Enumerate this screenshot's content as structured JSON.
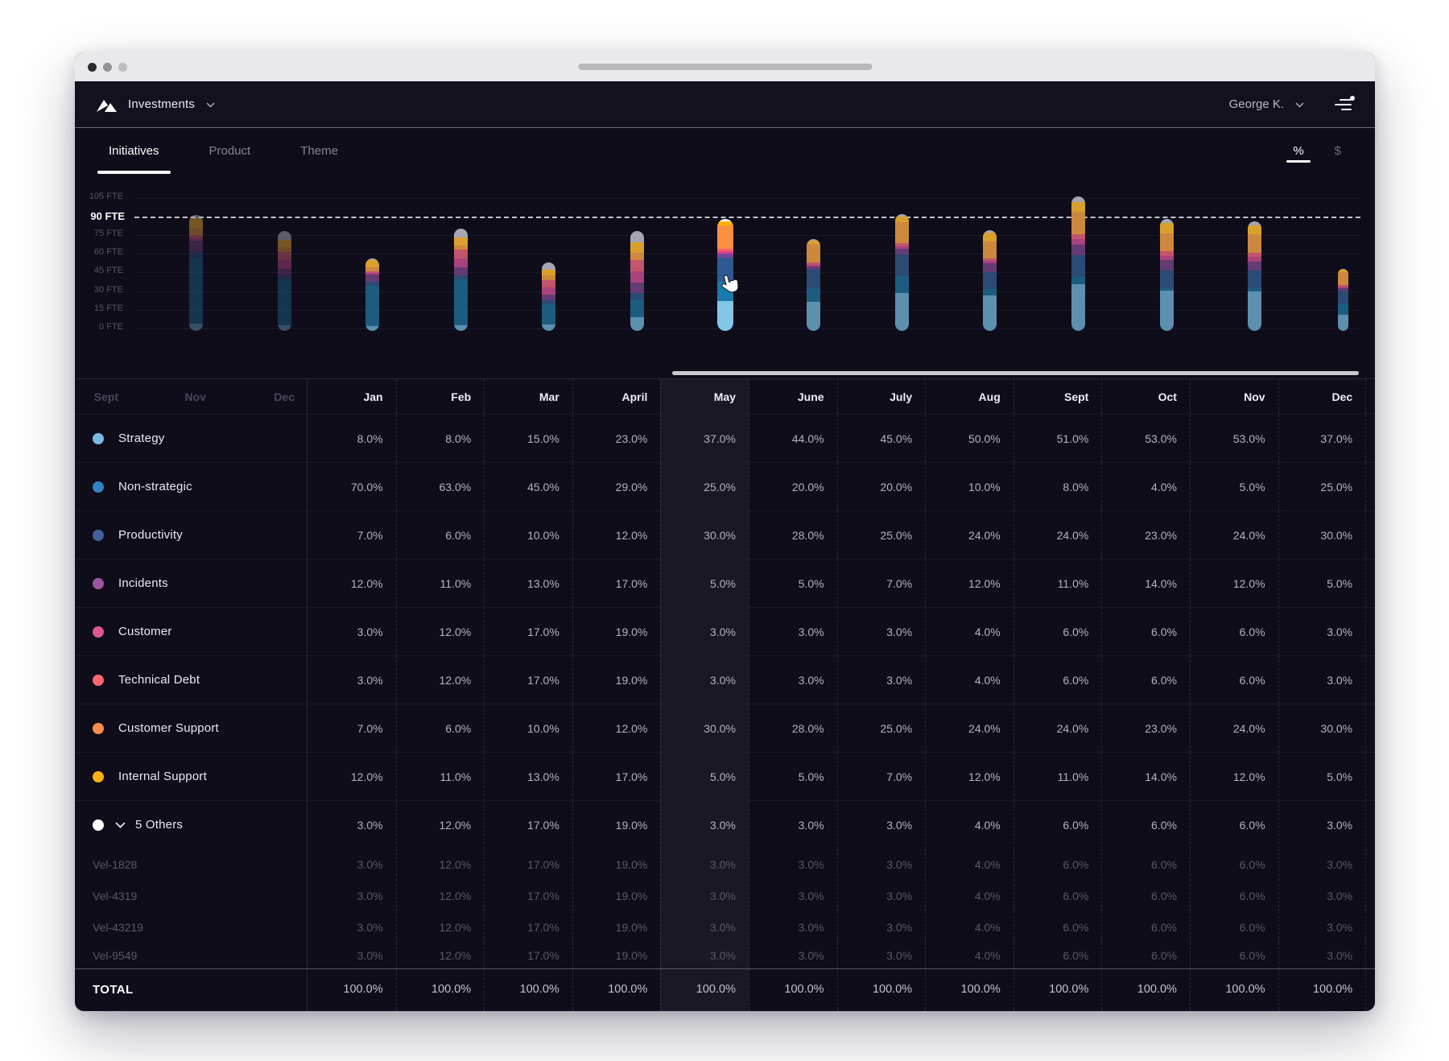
{
  "nav": {
    "title": "Investments",
    "user": "George K."
  },
  "tabs": {
    "items": [
      "Initiatives",
      "Product",
      "Theme"
    ],
    "active_index": 0,
    "units": [
      "%",
      "$"
    ],
    "active_unit_index": 0
  },
  "chart_data": {
    "type": "bar",
    "stacked": true,
    "unit": "FTE",
    "ylim": [
      0,
      112
    ],
    "grid": true,
    "legend": "none",
    "y_ticks": [
      {
        "label": "105 FTE",
        "value": 105
      },
      {
        "label": "90 FTE",
        "value": 90,
        "emphasis": true
      },
      {
        "label": "75 FTE",
        "value": 75
      },
      {
        "label": "60 FTE",
        "value": 60
      },
      {
        "label": "45 FTE",
        "value": 45
      },
      {
        "label": "30 FTE",
        "value": 30
      },
      {
        "label": "15 FTE",
        "value": 15
      },
      {
        "label": "0 FTE",
        "value": 0
      }
    ],
    "reference_line": {
      "label": "90 FTE",
      "value": 90,
      "style": "dashed"
    },
    "composition_note": "each bar is stacked bottom-to-top from table.rows percentages of that month",
    "months": [
      {
        "label": "Nov",
        "total_fte": 93,
        "comp_index": 0,
        "state": "dimmed"
      },
      {
        "label": "Dec",
        "total_fte": 80,
        "comp_index": 1,
        "state": "dimmed"
      },
      {
        "label": "Jan",
        "total_fte": 58,
        "comp_index": 0,
        "state": "normal"
      },
      {
        "label": "Feb",
        "total_fte": 82,
        "comp_index": 1,
        "state": "normal"
      },
      {
        "label": "Mar",
        "total_fte": 55,
        "comp_index": 2,
        "state": "normal"
      },
      {
        "label": "April",
        "total_fte": 80,
        "comp_index": 3,
        "state": "normal"
      },
      {
        "label": "May",
        "total_fte": 90,
        "comp_index": 4,
        "state": "selected"
      },
      {
        "label": "June",
        "total_fte": 74,
        "comp_index": 5,
        "state": "normal"
      },
      {
        "label": "July",
        "total_fte": 94,
        "comp_index": 6,
        "state": "normal"
      },
      {
        "label": "Aug",
        "total_fte": 81,
        "comp_index": 7,
        "state": "normal"
      },
      {
        "label": "Sept",
        "total_fte": 108,
        "comp_index": 8,
        "state": "normal"
      },
      {
        "label": "Oct",
        "total_fte": 90,
        "comp_index": 9,
        "state": "normal"
      },
      {
        "label": "Nov",
        "total_fte": 88,
        "comp_index": 10,
        "state": "normal"
      },
      {
        "label": "Dec",
        "total_fte": 50,
        "comp_index": 11,
        "state": "normal",
        "clipped": true
      }
    ],
    "palette": {
      "normal": {
        "strategy": "#5d8fae",
        "non_strategic": "#1c5c80",
        "productivity": "#2b4a74",
        "incidents": "#643b72",
        "customer": "#a8437d",
        "technical_debt": "#c2556b",
        "customer_support": "#cd883f",
        "internal_support": "#d9a02c",
        "others": "#a6a6b2"
      },
      "selected": {
        "strategy": "#82c7e6",
        "non_strategic": "#1b7aad",
        "productivity": "#2e5a91",
        "incidents": "#7b4595",
        "customer": "#e0438c",
        "technical_debt": "#fa5f65",
        "customer_support": "#fd9040",
        "internal_support": "#ffb300",
        "others": "#ffffff"
      }
    }
  },
  "table": {
    "scrolled_out_months": [
      "Sept",
      "Nov",
      "Dec"
    ],
    "months": [
      "Jan",
      "Feb",
      "Mar",
      "April",
      "May",
      "June",
      "July",
      "Aug",
      "Sept",
      "Oct",
      "Nov",
      "Dec"
    ],
    "highlighted_month_index": 4,
    "rows": [
      {
        "key": "strategy",
        "label": "Strategy",
        "color": "#79bbe3",
        "values": [
          8,
          8,
          15,
          23,
          37,
          44,
          45,
          50,
          51,
          53,
          53,
          37
        ]
      },
      {
        "key": "non_strategic",
        "label": "Non-strategic",
        "color": "#2e84c2",
        "values": [
          70,
          63,
          45,
          29,
          25,
          20,
          20,
          10,
          8,
          4,
          5,
          25
        ]
      },
      {
        "key": "productivity",
        "label": "Productivity",
        "color": "#44619d",
        "values": [
          7,
          6,
          10,
          12,
          30,
          28,
          25,
          24,
          24,
          23,
          24,
          30
        ]
      },
      {
        "key": "incidents",
        "label": "Incidents",
        "color": "#9d54a0",
        "values": [
          12,
          11,
          13,
          17,
          5,
          5,
          7,
          12,
          11,
          14,
          12,
          5
        ]
      },
      {
        "key": "customer",
        "label": "Customer",
        "color": "#de5793",
        "values": [
          3,
          12,
          17,
          19,
          3,
          3,
          3,
          4,
          6,
          6,
          6,
          3
        ]
      },
      {
        "key": "technical_debt",
        "label": "Technical Debt",
        "color": "#fb6570",
        "values": [
          3,
          12,
          17,
          19,
          3,
          3,
          3,
          4,
          6,
          6,
          6,
          3
        ]
      },
      {
        "key": "customer_support",
        "label": "Customer Support",
        "color": "#fb8d4d",
        "values": [
          7,
          6,
          10,
          12,
          30,
          28,
          25,
          24,
          24,
          23,
          24,
          30
        ]
      },
      {
        "key": "internal_support",
        "label": "Internal Support",
        "color": "#fcb016",
        "values": [
          12,
          11,
          13,
          17,
          5,
          5,
          7,
          12,
          11,
          14,
          12,
          5
        ]
      },
      {
        "key": "others",
        "label": "5 Others",
        "color": "#ffffff",
        "is_group": true,
        "expanded": true,
        "values": [
          3,
          12,
          17,
          19,
          3,
          3,
          3,
          4,
          6,
          6,
          6,
          3
        ],
        "sub_rows": [
          {
            "label": "Vel-1828",
            "values": [
              3,
              12,
              17,
              19,
              3,
              3,
              3,
              4,
              6,
              6,
              6,
              3
            ]
          },
          {
            "label": "Vel-4319",
            "values": [
              3,
              12,
              17,
              19,
              3,
              3,
              3,
              4,
              6,
              6,
              6,
              3
            ]
          },
          {
            "label": "Vel-43219",
            "values": [
              3,
              12,
              17,
              19,
              3,
              3,
              3,
              4,
              6,
              6,
              6,
              3
            ]
          },
          {
            "label": "Vel-9549",
            "values": [
              3,
              12,
              17,
              19,
              3,
              3,
              3,
              4,
              6,
              6,
              6,
              3
            ],
            "clipped": true
          }
        ]
      }
    ],
    "total_row": {
      "label": "TOTAL",
      "values": [
        100,
        100,
        100,
        100,
        100,
        100,
        100,
        100,
        100,
        100,
        100,
        100
      ]
    }
  }
}
